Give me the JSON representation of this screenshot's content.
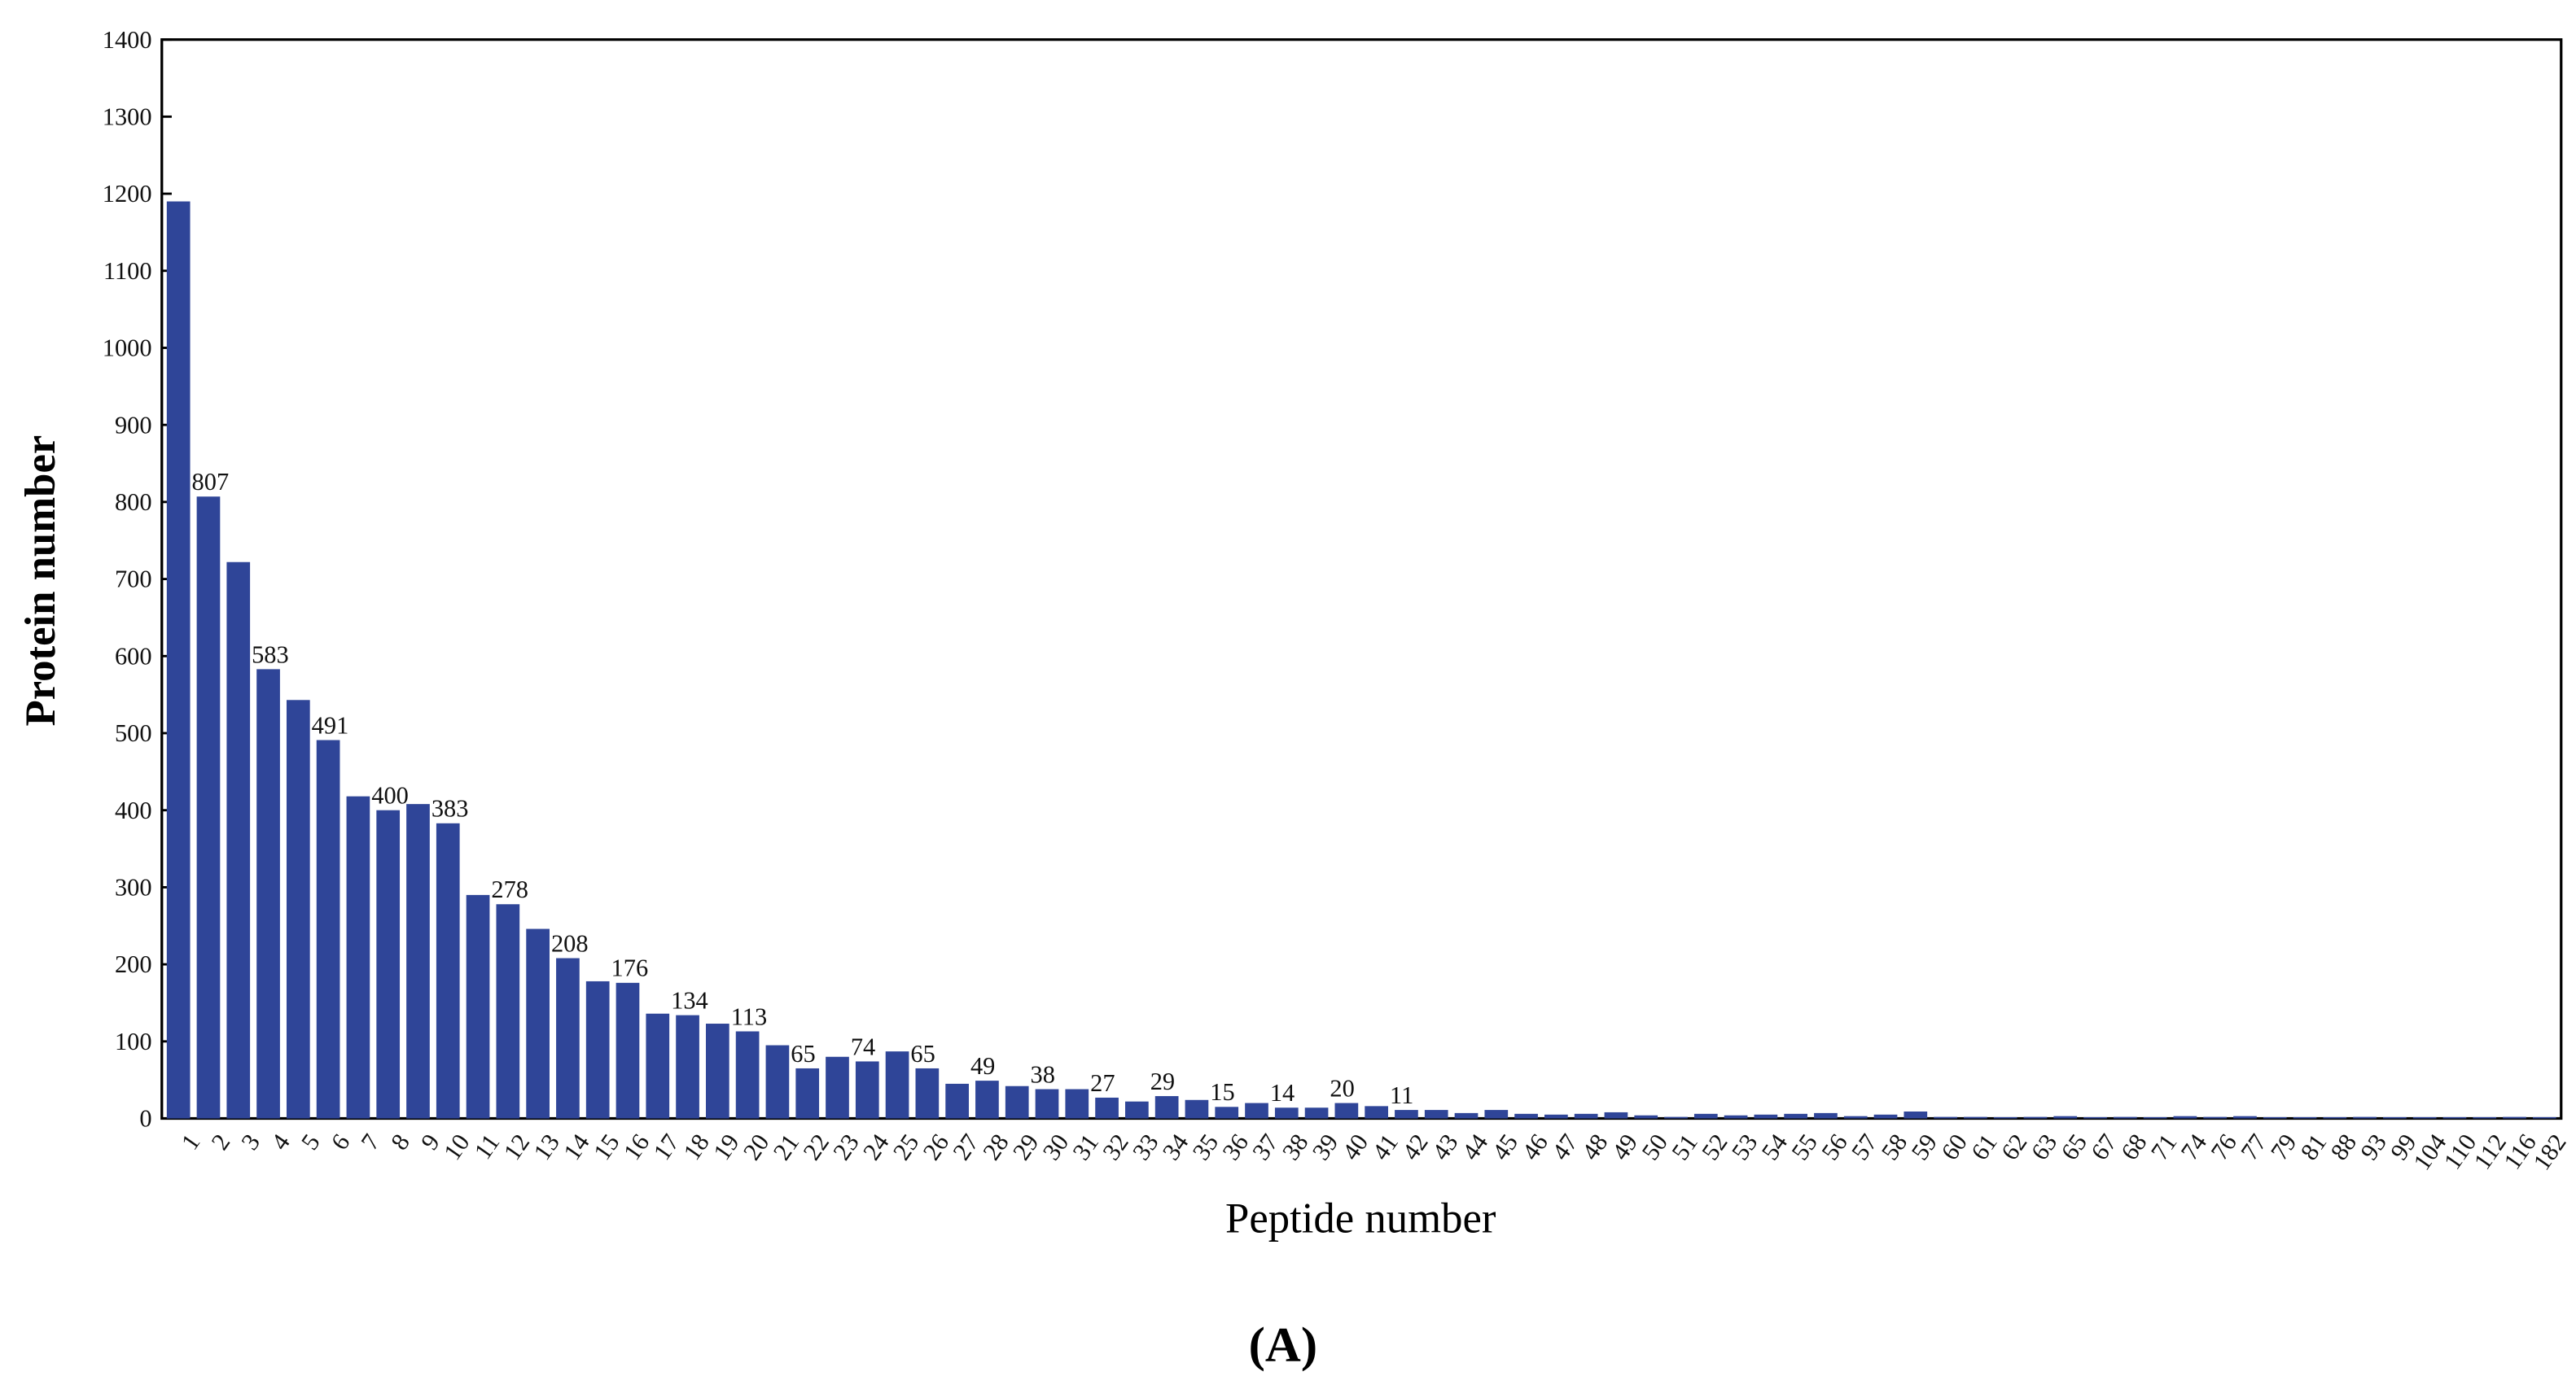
{
  "figure": {
    "caption": "(A)",
    "bar_color": "#2f4598",
    "axis_color": "#000000"
  },
  "chart_data": {
    "type": "bar",
    "title": "",
    "xlabel": "Peptide number",
    "ylabel": "Protein number",
    "ylim": [
      0,
      1400
    ],
    "yticks": [
      0,
      100,
      200,
      300,
      400,
      500,
      600,
      700,
      800,
      900,
      1000,
      1100,
      1200,
      1300,
      1400
    ],
    "grid": false,
    "legend": null,
    "categories": [
      "1",
      "2",
      "3",
      "4",
      "5",
      "6",
      "7",
      "8",
      "9",
      "10",
      "11",
      "12",
      "13",
      "14",
      "15",
      "16",
      "17",
      "18",
      "19",
      "20",
      "21",
      "22",
      "23",
      "24",
      "25",
      "26",
      "27",
      "28",
      "29",
      "30",
      "31",
      "32",
      "33",
      "34",
      "35",
      "36",
      "37",
      "38",
      "39",
      "40",
      "41",
      "42",
      "43",
      "44",
      "45",
      "46",
      "47",
      "48",
      "49",
      "50",
      "51",
      "52",
      "53",
      "54",
      "55",
      "56",
      "57",
      "58",
      "59",
      "60",
      "61",
      "62",
      "63",
      "65",
      "67",
      "68",
      "71",
      "74",
      "76",
      "77",
      "79",
      "81",
      "88",
      "93",
      "99",
      "104",
      "110",
      "112",
      "116",
      "182"
    ],
    "values": [
      1190,
      807,
      722,
      583,
      543,
      491,
      418,
      400,
      408,
      383,
      290,
      278,
      246,
      208,
      178,
      176,
      136,
      134,
      123,
      113,
      95,
      65,
      80,
      74,
      87,
      65,
      45,
      49,
      42,
      38,
      38,
      27,
      22,
      29,
      24,
      15,
      20,
      14,
      14,
      20,
      16,
      11,
      11,
      7,
      11,
      6,
      5,
      6,
      8,
      4,
      2,
      6,
      4,
      5,
      6,
      7,
      3,
      5,
      9,
      2,
      2,
      1,
      2,
      3,
      1,
      2,
      1,
      3,
      2,
      3,
      1,
      1,
      1,
      2,
      1,
      1,
      1,
      1,
      2,
      1
    ],
    "annotations": [
      {
        "category": "2",
        "label": "807"
      },
      {
        "category": "4",
        "label": "583"
      },
      {
        "category": "6",
        "label": "491"
      },
      {
        "category": "8",
        "label": "400"
      },
      {
        "category": "10",
        "label": "383"
      },
      {
        "category": "12",
        "label": "278"
      },
      {
        "category": "14",
        "label": "208"
      },
      {
        "category": "16",
        "label": "176"
      },
      {
        "category": "18",
        "label": "134"
      },
      {
        "category": "20",
        "label": "113"
      },
      {
        "category": "22",
        "label": "65"
      },
      {
        "category": "24",
        "label": "74"
      },
      {
        "category": "26",
        "label": "65"
      },
      {
        "category": "28",
        "label": "49"
      },
      {
        "category": "30",
        "label": "38"
      },
      {
        "category": "32",
        "label": "27"
      },
      {
        "category": "34",
        "label": "29"
      },
      {
        "category": "36",
        "label": "15"
      },
      {
        "category": "38",
        "label": "14"
      },
      {
        "category": "40",
        "label": "20"
      },
      {
        "category": "42",
        "label": "11"
      }
    ]
  }
}
